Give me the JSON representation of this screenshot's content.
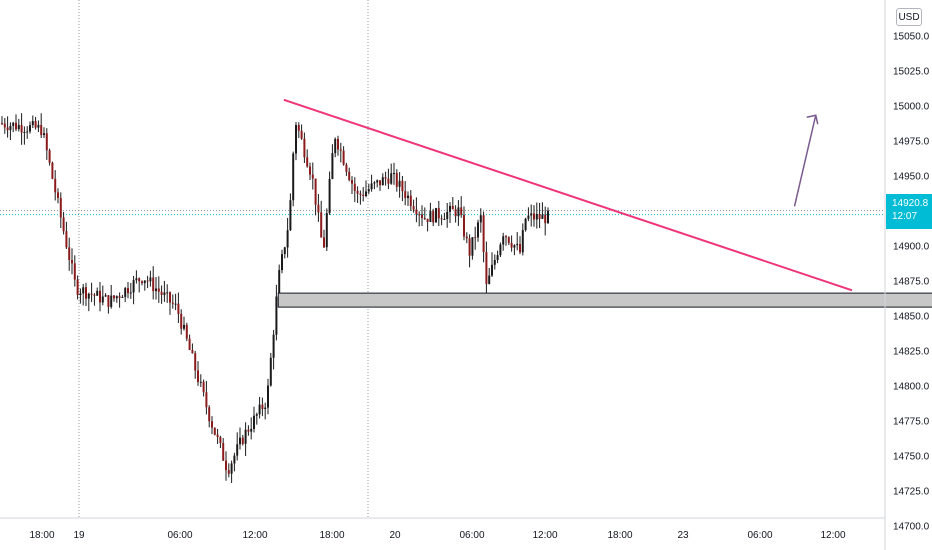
{
  "currency": "USD",
  "last_price": {
    "value": "14920.8",
    "countdown": "12:07"
  },
  "colors": {
    "up": "#26a69a",
    "down": "#ef5350",
    "candle": "#1a1a1a",
    "trendline": "#f0347a",
    "arrow": "#7b5a8e",
    "zone_fill": "#c7c7c7",
    "zone_border": "#131722",
    "price_tag": "#00bcd4",
    "grid_cross": "#9598a1"
  },
  "chart_data": {
    "type": "candlestick",
    "ylim": [
      14690,
      15070
    ],
    "y_ticks": [
      "15050.0",
      "15025.0",
      "15000.0",
      "14975.0",
      "14950.0",
      "14925.0",
      "14900.0",
      "14875.0",
      "14850.0",
      "14825.0",
      "14800.0",
      "14775.0",
      "14750.0",
      "14725.0",
      "14700.0"
    ],
    "x_ticks": [
      "18:00",
      "19",
      "06:00",
      "12:00",
      "18:00",
      "20",
      "06:00",
      "12:00",
      "18:00",
      "23",
      "06:00",
      "12:00"
    ],
    "drawings": {
      "descending_trendline": {
        "from": [
          "18 15:30",
          15004
        ],
        "to": [
          "20 18:00",
          14868
        ]
      },
      "support_zone": {
        "from": [
          "18 15:00",
          14866
        ],
        "to": [
          "22 20:00",
          14856
        ]
      },
      "projection_arrow": {
        "from": [
          "20 12:00",
          14928
        ],
        "to": [
          "20 13:00",
          14993
        ]
      }
    },
    "series_anchors": [
      {
        "x": "17 12:00",
        "y": 14990
      },
      {
        "x": "17 18:00",
        "y": 14983
      },
      {
        "x": "17 21:00",
        "y": 14870
      },
      {
        "x": "18 00:00",
        "y": 14860
      },
      {
        "x": "18 03:00",
        "y": 14878
      },
      {
        "x": "18 06:00",
        "y": 14855
      },
      {
        "x": "18 09:00",
        "y": 14775
      },
      {
        "x": "18 10:30",
        "y": 14740
      },
      {
        "x": "18 12:00",
        "y": 14765
      },
      {
        "x": "18 14:00",
        "y": 14790
      },
      {
        "x": "18 15:00",
        "y": 14875
      },
      {
        "x": "18 16:00",
        "y": 14920
      },
      {
        "x": "18 16:30",
        "y": 14990
      },
      {
        "x": "18 18:00",
        "y": 14950
      },
      {
        "x": "18 19:00",
        "y": 14895
      },
      {
        "x": "18 20:00",
        "y": 14980
      },
      {
        "x": "18 22:00",
        "y": 14935
      },
      {
        "x": "19 01:00",
        "y": 14950
      },
      {
        "x": "19 04:00",
        "y": 14920
      },
      {
        "x": "19 07:00",
        "y": 14925
      },
      {
        "x": "19 08:00",
        "y": 14895
      },
      {
        "x": "19 09:00",
        "y": 14920
      },
      {
        "x": "19 09:30",
        "y": 14870
      },
      {
        "x": "19 11:00",
        "y": 14910
      },
      {
        "x": "19 12:30",
        "y": 14895
      },
      {
        "x": "19 13:00",
        "y": 14920
      }
    ]
  }
}
